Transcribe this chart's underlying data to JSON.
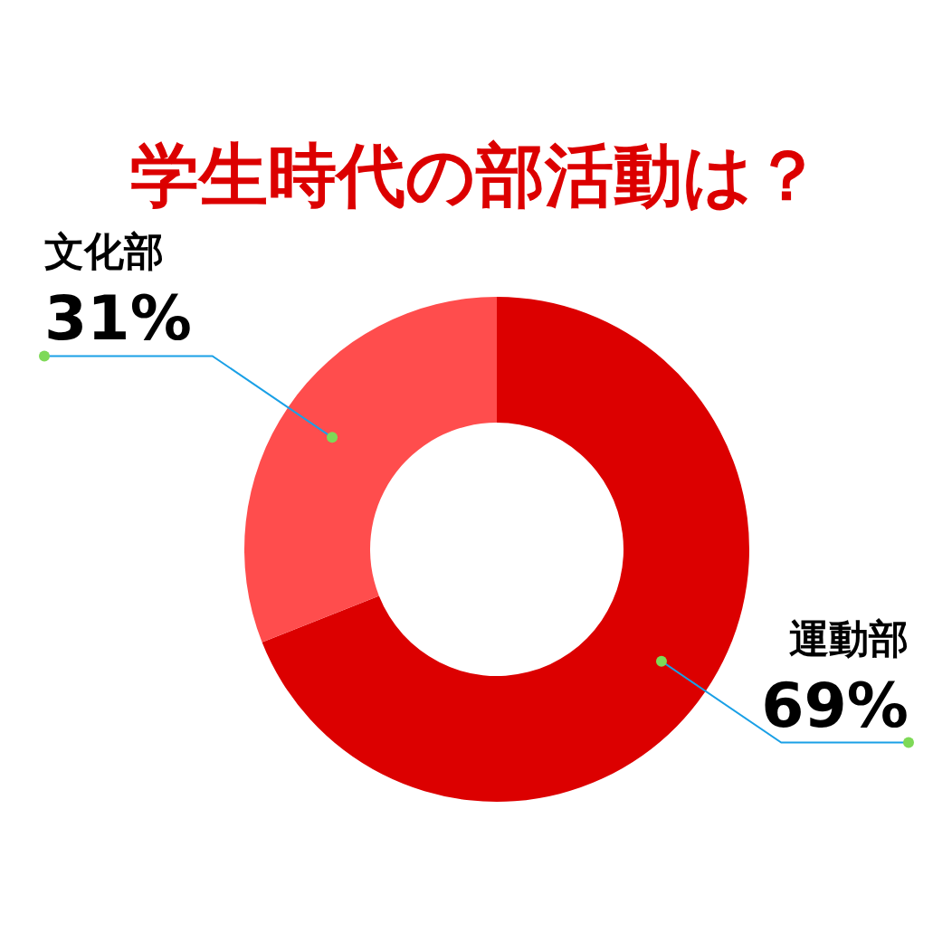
{
  "chart_data": {
    "type": "donut",
    "title": "学生時代の部活動は？",
    "categories": [
      "運動部",
      "文化部"
    ],
    "values": [
      69,
      31
    ],
    "value_labels": [
      "69%",
      "31%"
    ],
    "colors": [
      "#dc0000",
      "#ff4d4d"
    ]
  }
}
